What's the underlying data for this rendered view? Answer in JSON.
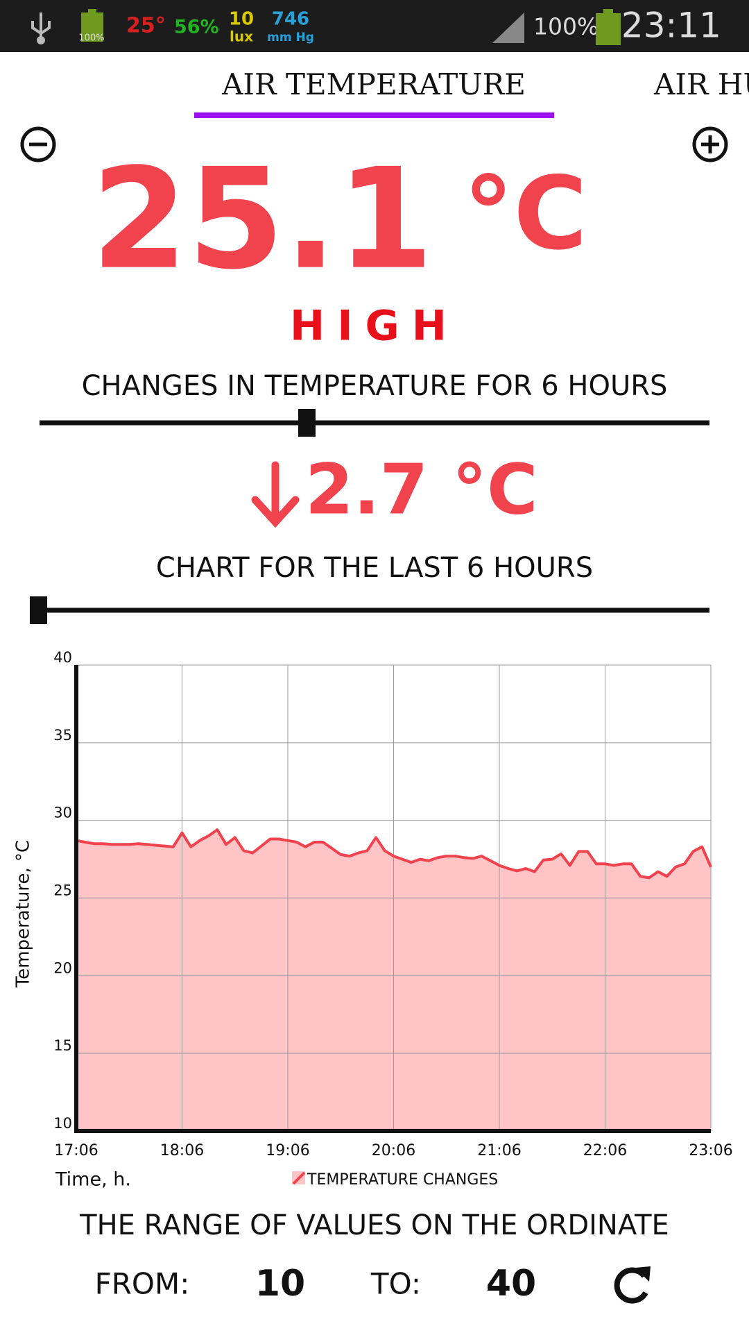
{
  "status_bar": {
    "battery_icon_label": "100%",
    "temperature": "25°",
    "humidity": "56%",
    "light_value": "10",
    "light_unit": "lux",
    "pressure_value": "746",
    "pressure_unit": "mm Hg",
    "battery": "100%",
    "time": "23:11"
  },
  "tabs": [
    "AIR TEMPERATURE",
    "AIR HU"
  ],
  "reading": {
    "value": "25.1",
    "unit": "°C",
    "level": "HIGH"
  },
  "changes": {
    "title": "CHANGES IN TEMPERATURE FOR 6 HOURS",
    "value": "2.7 °C"
  },
  "chart_title": "CHART FOR THE LAST 6 HOURS",
  "chart_data": {
    "type": "area",
    "xlabel": "Time, h.",
    "ylabel": "Temperature, °C",
    "x": [
      "17:06",
      "17:11",
      "17:16",
      "17:21",
      "17:26",
      "17:31",
      "17:36",
      "17:41",
      "17:46",
      "17:51",
      "17:56",
      "18:01",
      "18:06",
      "18:11",
      "18:16",
      "18:21",
      "18:26",
      "18:31",
      "18:36",
      "18:41",
      "18:46",
      "18:51",
      "18:56",
      "19:01",
      "19:06",
      "19:11",
      "19:16",
      "19:21",
      "19:26",
      "19:31",
      "19:36",
      "19:41",
      "19:46",
      "19:51",
      "19:56",
      "20:01",
      "20:06",
      "20:11",
      "20:16",
      "20:21",
      "20:26",
      "20:31",
      "20:36",
      "20:41",
      "20:46",
      "20:51",
      "20:56",
      "21:01",
      "21:06",
      "21:11",
      "21:16",
      "21:21",
      "21:26",
      "21:31",
      "21:36",
      "21:41",
      "21:46",
      "21:51",
      "21:56",
      "22:01",
      "22:06",
      "22:11",
      "22:16",
      "22:21",
      "22:26",
      "22:31",
      "22:36",
      "22:41",
      "22:46",
      "22:51",
      "22:56",
      "23:01",
      "23:06"
    ],
    "series": [
      {
        "name": "TEMPERATURE CHANGES",
        "color": "#f0434d",
        "fill": "#ffc4c6",
        "values": [
          28.7,
          28.6,
          28.5,
          28.5,
          28.45,
          28.45,
          28.45,
          28.5,
          28.45,
          28.4,
          28.35,
          28.3,
          29.2,
          28.3,
          28.7,
          29.0,
          29.4,
          28.45,
          28.9,
          28.05,
          27.9,
          28.35,
          28.8,
          28.8,
          28.7,
          28.6,
          28.3,
          28.6,
          28.6,
          28.2,
          27.8,
          27.7,
          27.9,
          28.05,
          28.9,
          28.05,
          27.7,
          27.5,
          27.3,
          27.5,
          27.4,
          27.6,
          27.7,
          27.7,
          27.6,
          27.55,
          27.7,
          27.4,
          27.1,
          26.9,
          26.75,
          26.9,
          26.7,
          27.45,
          27.5,
          27.85,
          27.1,
          28.0,
          28.0,
          27.2,
          27.2,
          27.1,
          27.2,
          27.2,
          26.4,
          26.3,
          26.7,
          26.4,
          27.0,
          27.2,
          28.0,
          28.3,
          27.0
        ]
      }
    ],
    "xlim": [
      "17:06",
      "23:06"
    ],
    "xticks": [
      "17:06",
      "18:06",
      "19:06",
      "20:06",
      "21:06",
      "22:06",
      "23:06"
    ],
    "ylim": [
      10,
      40
    ],
    "yticks": [
      10,
      15,
      20,
      25,
      30,
      35,
      40
    ],
    "grid": true
  },
  "range": {
    "title": "THE RANGE OF VALUES ON THE ORDINATE",
    "from_label": "FROM:",
    "from": "10",
    "to_label": "TO:",
    "to": "40"
  }
}
